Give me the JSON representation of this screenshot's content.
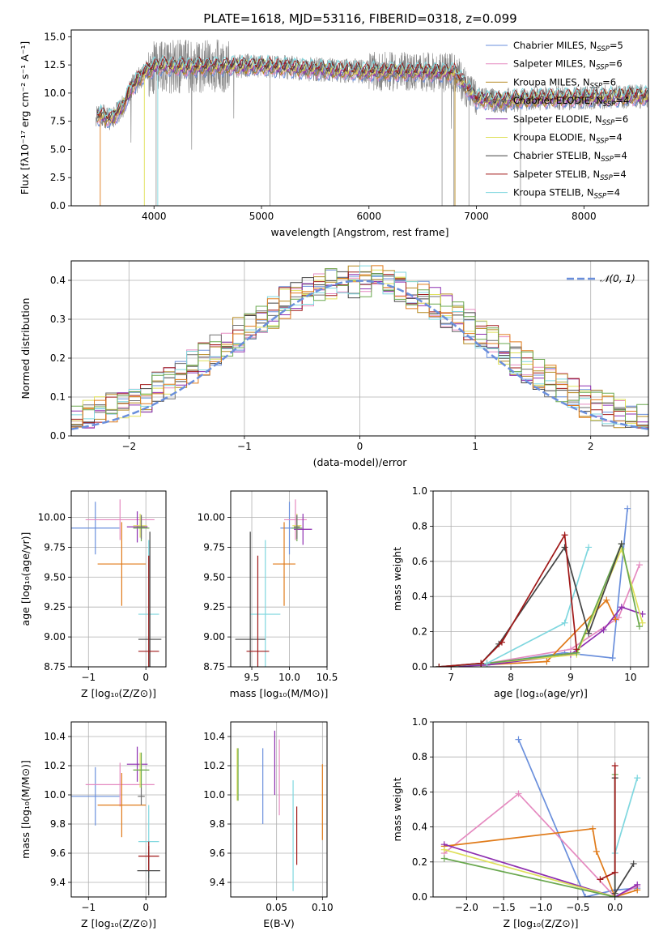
{
  "figure_title": "PLATE=1618, MJD=53116, FIBERID=0318, z=0.099",
  "palette": [
    "#6a8fdc",
    "#e58ac0",
    "#b5881f",
    "#6f6f6f",
    "#8e2fb0",
    "#dfe05a",
    "#444444",
    "#a01818",
    "#7fd7df",
    "#e07b1a",
    "#6aa84f"
  ],
  "chart_data": [
    {
      "id": "spectrum",
      "type": "line",
      "xlabel": "wavelength [Angstrom, rest frame]",
      "ylabel": "Flux [fλ10⁻¹⁷ erg cm⁻² s⁻¹ A⁻¹]",
      "xlim": [
        3230,
        8600
      ],
      "ylim": [
        0,
        15.6
      ],
      "xticks": [
        "4000",
        "5000",
        "6000",
        "7000",
        "8000"
      ],
      "yticks": [
        "0.0",
        "2.5",
        "5.0",
        "7.5",
        "10.0",
        "12.5",
        "15.0"
      ],
      "ytick_values": [
        0,
        2.5,
        5.0,
        7.5,
        10.0,
        12.5,
        15.0
      ],
      "xtick_values": [
        4000,
        5000,
        6000,
        7000,
        8000
      ],
      "continuum_x": [
        3500,
        3600,
        3700,
        3800,
        3900,
        4000,
        4100,
        4300,
        4600,
        5000,
        5500,
        6000,
        6400,
        6800,
        6900,
        7000,
        7200,
        7500,
        8000,
        8500
      ],
      "continuum_y": [
        8.0,
        7.7,
        8.7,
        10.6,
        11.7,
        12.3,
        12.4,
        12.3,
        12.4,
        12.4,
        12.1,
        11.9,
        11.9,
        11.8,
        10.6,
        9.5,
        9.3,
        9.5,
        9.6,
        9.7
      ],
      "legend": [
        {
          "label": "Chabrier MILES, N",
          "sub": "SSP",
          "tail": "=5",
          "color": "#6a8fdc"
        },
        {
          "label": "Salpeter MILES, N",
          "sub": "SSP",
          "tail": "=6",
          "color": "#e58ac0"
        },
        {
          "label": "Kroupa MILES, N",
          "sub": "SSP",
          "tail": "=6",
          "color": "#b5881f"
        },
        {
          "label": "Chabrier ELODIE, N",
          "sub": "SSP",
          "tail": "=4",
          "color": "#6f6f6f"
        },
        {
          "label": "Salpeter ELODIE, N",
          "sub": "SSP",
          "tail": "=6",
          "color": "#8e2fb0"
        },
        {
          "label": "Kroupa ELODIE, N",
          "sub": "SSP",
          "tail": "=4",
          "color": "#dfe05a"
        },
        {
          "label": "Chabrier STELIB, N",
          "sub": "SSP",
          "tail": "=4",
          "color": "#444444"
        },
        {
          "label": "Salpeter STELIB, N",
          "sub": "SSP",
          "tail": "=4",
          "color": "#a01818"
        },
        {
          "label": "Kroupa STELIB, N",
          "sub": "SSP",
          "tail": "=4",
          "color": "#7fd7df"
        }
      ]
    },
    {
      "id": "residuals",
      "type": "histogram",
      "xlabel": "(data-model)/error",
      "ylabel": "Normed distribution",
      "xlim": [
        -2.5,
        2.5
      ],
      "ylim": [
        0,
        0.45
      ],
      "xticks": [
        "−2",
        "−1",
        "0",
        "1",
        "2"
      ],
      "xtick_values": [
        -2,
        -1,
        0,
        1,
        2
      ],
      "yticks": [
        "0.0",
        "0.1",
        "0.2",
        "0.3",
        "0.4"
      ],
      "ytick_values": [
        0,
        0.1,
        0.2,
        0.3,
        0.4
      ],
      "legend_label": "𝒩(0, 1)",
      "gaussian_color": "#6a8fdc",
      "bin_width": 0.1,
      "hist_colors": [
        "#6a8fdc",
        "#e58ac0",
        "#b5881f",
        "#6f6f6f",
        "#8e2fb0",
        "#dfe05a",
        "#444444",
        "#a01818",
        "#7fd7df",
        "#e07b1a",
        "#6aa84f"
      ]
    },
    {
      "id": "age_vs_Z",
      "type": "errorbar",
      "xlabel": "Z [log₁₀(Z/Z⊙)]",
      "ylabel": "age  [log₁₀(age/yr)]",
      "xlim": [
        -1.3,
        0.35
      ],
      "ylim": [
        8.75,
        10.22
      ],
      "xticks": [
        "−1",
        "0"
      ],
      "xtick_values": [
        -1,
        0
      ],
      "yticks": [
        "8.75",
        "9.00",
        "9.25",
        "9.50",
        "9.75",
        "10.00"
      ],
      "ytick_values": [
        8.75,
        9.0,
        9.25,
        9.5,
        9.75,
        10.0
      ],
      "points": [
        {
          "x": -0.88,
          "xerr": 0.42,
          "y": 9.91,
          "yerr": 0.22,
          "color": "#6a8fdc"
        },
        {
          "x": -0.45,
          "xerr": 0.6,
          "y": 9.98,
          "yerr": 0.17,
          "color": "#e58ac0"
        },
        {
          "x": -0.42,
          "xerr": 0.42,
          "y": 9.61,
          "yerr": 0.35,
          "color": "#e07b1a"
        },
        {
          "x": -0.15,
          "xerr": 0.18,
          "y": 9.92,
          "yerr": 0.13,
          "color": "#8e2fb0"
        },
        {
          "x": -0.1,
          "xerr": 0.12,
          "y": 9.93,
          "yerr": 0.1,
          "color": "#dfe05a"
        },
        {
          "x": -0.08,
          "xerr": 0.14,
          "y": 9.91,
          "yerr": 0.11,
          "color": "#6aa84f"
        },
        {
          "x": 0.05,
          "xerr": 0.18,
          "y": 9.19,
          "yerr": 0.62,
          "color": "#7fd7df"
        },
        {
          "x": 0.07,
          "xerr": 0.2,
          "y": 8.98,
          "yerr": 0.9,
          "color": "#444444"
        },
        {
          "x": 0.05,
          "xerr": 0.18,
          "y": 8.88,
          "yerr": 0.8,
          "color": "#a01818"
        },
        {
          "x": -0.08,
          "xerr": 0.06,
          "y": 9.92,
          "yerr": 0.1,
          "color": "#6f6f6f"
        }
      ]
    },
    {
      "id": "age_vs_mass",
      "type": "errorbar",
      "xlabel": "mass [log₁₀(M/M⊙)]",
      "ylabel": "",
      "xlim": [
        9.22,
        10.5
      ],
      "ylim": [
        8.75,
        10.22
      ],
      "xticks": [
        "9.5",
        "10.0",
        "10.5"
      ],
      "xtick_values": [
        9.5,
        10.0,
        10.5
      ],
      "yticks": [
        "8.75",
        "9.00",
        "9.25",
        "9.50",
        "9.75",
        "10.00"
      ],
      "ytick_values": [
        8.75,
        9.0,
        9.25,
        9.5,
        9.75,
        10.0
      ],
      "points": [
        {
          "x": 10.0,
          "xerr": 0.12,
          "y": 9.91,
          "yerr": 0.22,
          "color": "#6a8fdc"
        },
        {
          "x": 10.08,
          "xerr": 0.15,
          "y": 9.98,
          "yerr": 0.17,
          "color": "#e58ac0"
        },
        {
          "x": 9.93,
          "xerr": 0.15,
          "y": 9.61,
          "yerr": 0.35,
          "color": "#e07b1a"
        },
        {
          "x": 10.18,
          "xerr": 0.12,
          "y": 9.9,
          "yerr": 0.13,
          "color": "#8e2fb0"
        },
        {
          "x": 10.1,
          "xerr": 0.06,
          "y": 9.93,
          "yerr": 0.1,
          "color": "#dfe05a"
        },
        {
          "x": 10.1,
          "xerr": 0.07,
          "y": 9.91,
          "yerr": 0.11,
          "color": "#6aa84f"
        },
        {
          "x": 9.68,
          "xerr": 0.2,
          "y": 9.19,
          "yerr": 0.62,
          "color": "#7fd7df"
        },
        {
          "x": 9.48,
          "xerr": 0.2,
          "y": 8.98,
          "yerr": 0.9,
          "color": "#444444"
        },
        {
          "x": 9.58,
          "xerr": 0.15,
          "y": 8.88,
          "yerr": 0.8,
          "color": "#a01818"
        },
        {
          "x": 10.1,
          "xerr": 0.04,
          "y": 9.92,
          "yerr": 0.1,
          "color": "#6f6f6f"
        }
      ]
    },
    {
      "id": "massweight_vs_age",
      "type": "line",
      "xlabel": "age  [log₁₀(age/yr)]",
      "ylabel": "mass weight",
      "xlim": [
        6.7,
        10.3
      ],
      "ylim": [
        0,
        1.0
      ],
      "xticks": [
        "7",
        "8",
        "9",
        "10"
      ],
      "xtick_values": [
        7,
        8,
        9,
        10
      ],
      "yticks": [
        "0.0",
        "0.2",
        "0.4",
        "0.6",
        "0.8",
        "1.0"
      ],
      "ytick_values": [
        0,
        0.2,
        0.4,
        0.6,
        0.8,
        1.0
      ],
      "series": [
        {
          "color": "#6a8fdc",
          "x": [
            6.8,
            7.5,
            8.9,
            9.7,
            9.95
          ],
          "y": [
            0,
            0.01,
            0.08,
            0.05,
            0.9
          ]
        },
        {
          "color": "#e58ac0",
          "x": [
            6.8,
            7.6,
            9.0,
            9.8,
            10.15
          ],
          "y": [
            0,
            0.02,
            0.1,
            0.28,
            0.58
          ]
        },
        {
          "color": "#e07b1a",
          "x": [
            6.8,
            7.5,
            8.6,
            9.6,
            9.75
          ],
          "y": [
            0,
            0.01,
            0.03,
            0.38,
            0.27
          ]
        },
        {
          "color": "#8e2fb0",
          "x": [
            6.8,
            7.6,
            9.0,
            9.55,
            9.85,
            10.2
          ],
          "y": [
            0,
            0.01,
            0.07,
            0.21,
            0.34,
            0.3
          ]
        },
        {
          "color": "#dfe05a",
          "x": [
            6.8,
            7.6,
            9.1,
            9.85,
            10.2
          ],
          "y": [
            0,
            0.02,
            0.07,
            0.67,
            0.25
          ]
        },
        {
          "color": "#6aa84f",
          "x": [
            6.8,
            7.6,
            9.1,
            9.85,
            10.15
          ],
          "y": [
            0,
            0.02,
            0.08,
            0.7,
            0.23
          ]
        },
        {
          "color": "#7fd7df",
          "x": [
            6.8,
            7.6,
            8.9,
            9.3
          ],
          "y": [
            0,
            0.02,
            0.25,
            0.68
          ]
        },
        {
          "color": "#444444",
          "x": [
            6.8,
            7.5,
            7.8,
            8.9,
            9.3,
            9.85
          ],
          "y": [
            0,
            0.02,
            0.13,
            0.68,
            0.19,
            0.7
          ]
        },
        {
          "color": "#a01818",
          "x": [
            6.8,
            7.5,
            7.85,
            8.9,
            9.1
          ],
          "y": [
            0,
            0.02,
            0.14,
            0.75,
            0.1
          ]
        }
      ]
    },
    {
      "id": "mass_vs_Z",
      "type": "errorbar",
      "xlabel": "Z [log₁₀(Z/Z⊙)]",
      "ylabel": "mass [log₁₀(M/M⊙)]",
      "xlim": [
        -1.3,
        0.35
      ],
      "ylim": [
        9.3,
        10.5
      ],
      "xticks": [
        "−1",
        "0"
      ],
      "xtick_values": [
        -1,
        0
      ],
      "yticks": [
        "9.4",
        "9.6",
        "9.8",
        "10.0",
        "10.2",
        "10.4"
      ],
      "ytick_values": [
        9.4,
        9.6,
        9.8,
        10.0,
        10.2,
        10.4
      ],
      "points": [
        {
          "x": -0.88,
          "xerr": 0.42,
          "y": 9.99,
          "yerr": 0.2,
          "color": "#6a8fdc"
        },
        {
          "x": -0.45,
          "xerr": 0.6,
          "y": 10.07,
          "yerr": 0.15,
          "color": "#e58ac0"
        },
        {
          "x": -0.42,
          "xerr": 0.42,
          "y": 9.93,
          "yerr": 0.22,
          "color": "#e07b1a"
        },
        {
          "x": -0.15,
          "xerr": 0.18,
          "y": 10.21,
          "yerr": 0.12,
          "color": "#8e2fb0"
        },
        {
          "x": -0.1,
          "xerr": 0.12,
          "y": 10.17,
          "yerr": 0.12,
          "color": "#dfe05a"
        },
        {
          "x": -0.08,
          "xerr": 0.14,
          "y": 10.17,
          "yerr": 0.12,
          "color": "#6aa84f"
        },
        {
          "x": 0.05,
          "xerr": 0.18,
          "y": 9.68,
          "yerr": 0.25,
          "color": "#7fd7df"
        },
        {
          "x": 0.05,
          "xerr": 0.2,
          "y": 9.48,
          "yerr": 0.17,
          "color": "#444444"
        },
        {
          "x": 0.05,
          "xerr": 0.18,
          "y": 9.58,
          "yerr": 0.1,
          "color": "#a01818"
        },
        {
          "x": -0.08,
          "xerr": 0.06,
          "y": 9.99,
          "yerr": 0.06,
          "color": "#6f6f6f"
        }
      ]
    },
    {
      "id": "mass_vs_ebv",
      "type": "errorbar",
      "xlabel": "E(B-V)",
      "ylabel": "",
      "xlim": [
        0.0,
        0.105
      ],
      "ylim": [
        9.3,
        10.5
      ],
      "xticks": [
        "0.05",
        "0.10"
      ],
      "xtick_values": [
        0.05,
        0.1
      ],
      "yticks": [
        "9.4",
        "9.6",
        "9.8",
        "10.0",
        "10.2",
        "10.4"
      ],
      "ytick_values": [
        9.4,
        9.6,
        9.8,
        10.0,
        10.2,
        10.4
      ],
      "points": [
        {
          "x": 0.007,
          "y": 10.14,
          "yerr": 0.18,
          "color": "#dfe05a"
        },
        {
          "x": 0.008,
          "y": 10.14,
          "yerr": 0.18,
          "color": "#6aa84f"
        },
        {
          "x": 0.035,
          "y": 10.06,
          "yerr": 0.26,
          "color": "#6a8fdc"
        },
        {
          "x": 0.048,
          "y": 10.22,
          "yerr": 0.22,
          "color": "#8e2fb0"
        },
        {
          "x": 0.053,
          "y": 10.12,
          "yerr": 0.26,
          "color": "#e58ac0"
        },
        {
          "x": 0.068,
          "y": 9.72,
          "yerr": 0.38,
          "color": "#7fd7df"
        },
        {
          "x": 0.072,
          "y": 9.72,
          "yerr": 0.2,
          "color": "#a01818"
        },
        {
          "x": 0.1,
          "y": 9.95,
          "yerr": 0.26,
          "color": "#e07b1a"
        }
      ]
    },
    {
      "id": "massweight_vs_Z",
      "type": "line",
      "xlabel": "Z [log₁₀(Z/Z⊙)]",
      "ylabel": "mass weight",
      "xlim": [
        -2.45,
        0.45
      ],
      "ylim": [
        0,
        1.0
      ],
      "xticks": [
        "−2.0",
        "−1.5",
        "−1.0",
        "−0.5",
        "0.0"
      ],
      "xtick_values": [
        -2.0,
        -1.5,
        -1.0,
        -0.5,
        0.0
      ],
      "yticks": [
        "0.0",
        "0.2",
        "0.4",
        "0.6",
        "0.8",
        "1.0"
      ],
      "ytick_values": [
        0,
        0.2,
        0.4,
        0.6,
        0.8,
        1.0
      ],
      "series": [
        {
          "color": "#6a8fdc",
          "x": [
            -1.3,
            -0.4,
            0.0,
            0.3
          ],
          "y": [
            0.9,
            0.0,
            0.04,
            0.05
          ]
        },
        {
          "color": "#e58ac0",
          "x": [
            -2.3,
            -1.3,
            0.0,
            0.3
          ],
          "y": [
            0.25,
            0.59,
            0.0,
            0.06
          ]
        },
        {
          "color": "#e07b1a",
          "x": [
            -2.3,
            -0.3,
            -0.25,
            0.0,
            0.3
          ],
          "y": [
            0.29,
            0.39,
            0.26,
            0.0,
            0.04
          ]
        },
        {
          "color": "#8e2fb0",
          "x": [
            -2.3,
            0.0,
            0.3
          ],
          "y": [
            0.3,
            0.0,
            0.07
          ]
        },
        {
          "color": "#dfe05a",
          "x": [
            -2.3,
            0.0
          ],
          "y": [
            0.27,
            0.0
          ]
        },
        {
          "color": "#6aa84f",
          "x": [
            -2.3,
            0.0,
            0.0
          ],
          "y": [
            0.22,
            0.0,
            0.7
          ]
        },
        {
          "color": "#7fd7df",
          "x": [
            0.0,
            0.3
          ],
          "y": [
            0.25,
            0.68
          ]
        },
        {
          "color": "#444444",
          "x": [
            0.0,
            0.0,
            0.25
          ],
          "y": [
            0.68,
            0.02,
            0.19
          ]
        },
        {
          "color": "#a01818",
          "x": [
            -0.2,
            0.0,
            0.0
          ],
          "y": [
            0.1,
            0.14,
            0.75
          ]
        }
      ]
    }
  ]
}
